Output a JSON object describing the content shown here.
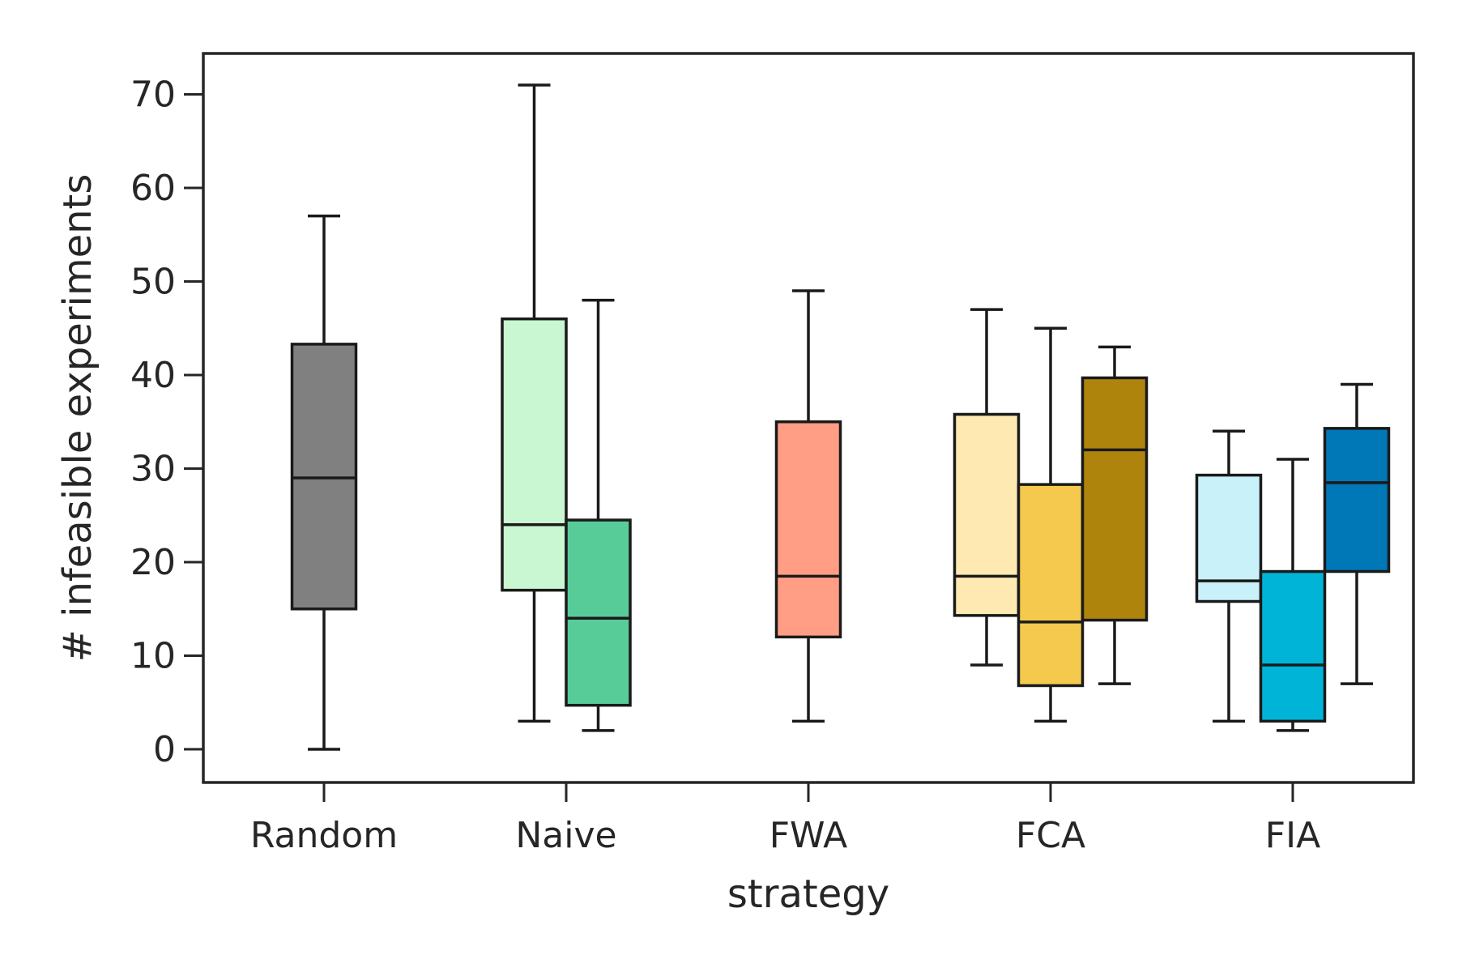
{
  "chart_data": {
    "type": "box",
    "title": "",
    "xlabel": "strategy",
    "ylabel": "# infeasible experiments",
    "ylim": [
      -3.5,
      75.5
    ],
    "yticks": [
      0,
      10,
      20,
      30,
      40,
      50,
      60,
      70
    ],
    "grid": false,
    "legend": "none",
    "categories": [
      "Random",
      "Naive",
      "FWA",
      "FCA",
      "FIA"
    ],
    "boxes": [
      {
        "category": "Random",
        "slot": 0,
        "color": "#808080",
        "whisker_low": 0,
        "q1": 15,
        "median": 29,
        "q3": 43.3,
        "whisker_high": 57
      },
      {
        "category": "Naive",
        "slot": 0,
        "color": "#c8f7d1",
        "whisker_low": 3,
        "q1": 17,
        "median": 24,
        "q3": 46,
        "whisker_high": 71
      },
      {
        "category": "Naive",
        "slot": 1,
        "color": "#57cc99",
        "whisker_low": 2,
        "q1": 4.7,
        "median": 14,
        "q3": 24.5,
        "whisker_high": 48
      },
      {
        "category": "FWA",
        "slot": 0,
        "color": "#ff9e85",
        "whisker_low": 3,
        "q1": 12,
        "median": 18.5,
        "q3": 35,
        "whisker_high": 49
      },
      {
        "category": "FCA",
        "slot": 0,
        "color": "#fde9b1",
        "whisker_low": 9,
        "q1": 14.3,
        "median": 18.5,
        "q3": 35.8,
        "whisker_high": 47
      },
      {
        "category": "FCA",
        "slot": 1,
        "color": "#f4c94d",
        "whisker_low": 3,
        "q1": 6.8,
        "median": 13.6,
        "q3": 28.3,
        "whisker_high": 45
      },
      {
        "category": "FCA",
        "slot": 2,
        "color": "#ae840c",
        "whisker_low": 7,
        "q1": 13.8,
        "median": 32,
        "q3": 39.7,
        "whisker_high": 43
      },
      {
        "category": "FIA",
        "slot": 0,
        "color": "#c9f1f9",
        "whisker_low": 3,
        "q1": 15.8,
        "median": 18,
        "q3": 29.3,
        "whisker_high": 34
      },
      {
        "category": "FIA",
        "slot": 1,
        "color": "#00b4d8",
        "whisker_low": 2,
        "q1": 3,
        "median": 9,
        "q3": 19,
        "whisker_high": 31
      },
      {
        "category": "FIA",
        "slot": 2,
        "color": "#0077b6",
        "whisker_low": 7,
        "q1": 19,
        "median": 28.5,
        "q3": 34.3,
        "whisker_high": 39
      }
    ]
  }
}
